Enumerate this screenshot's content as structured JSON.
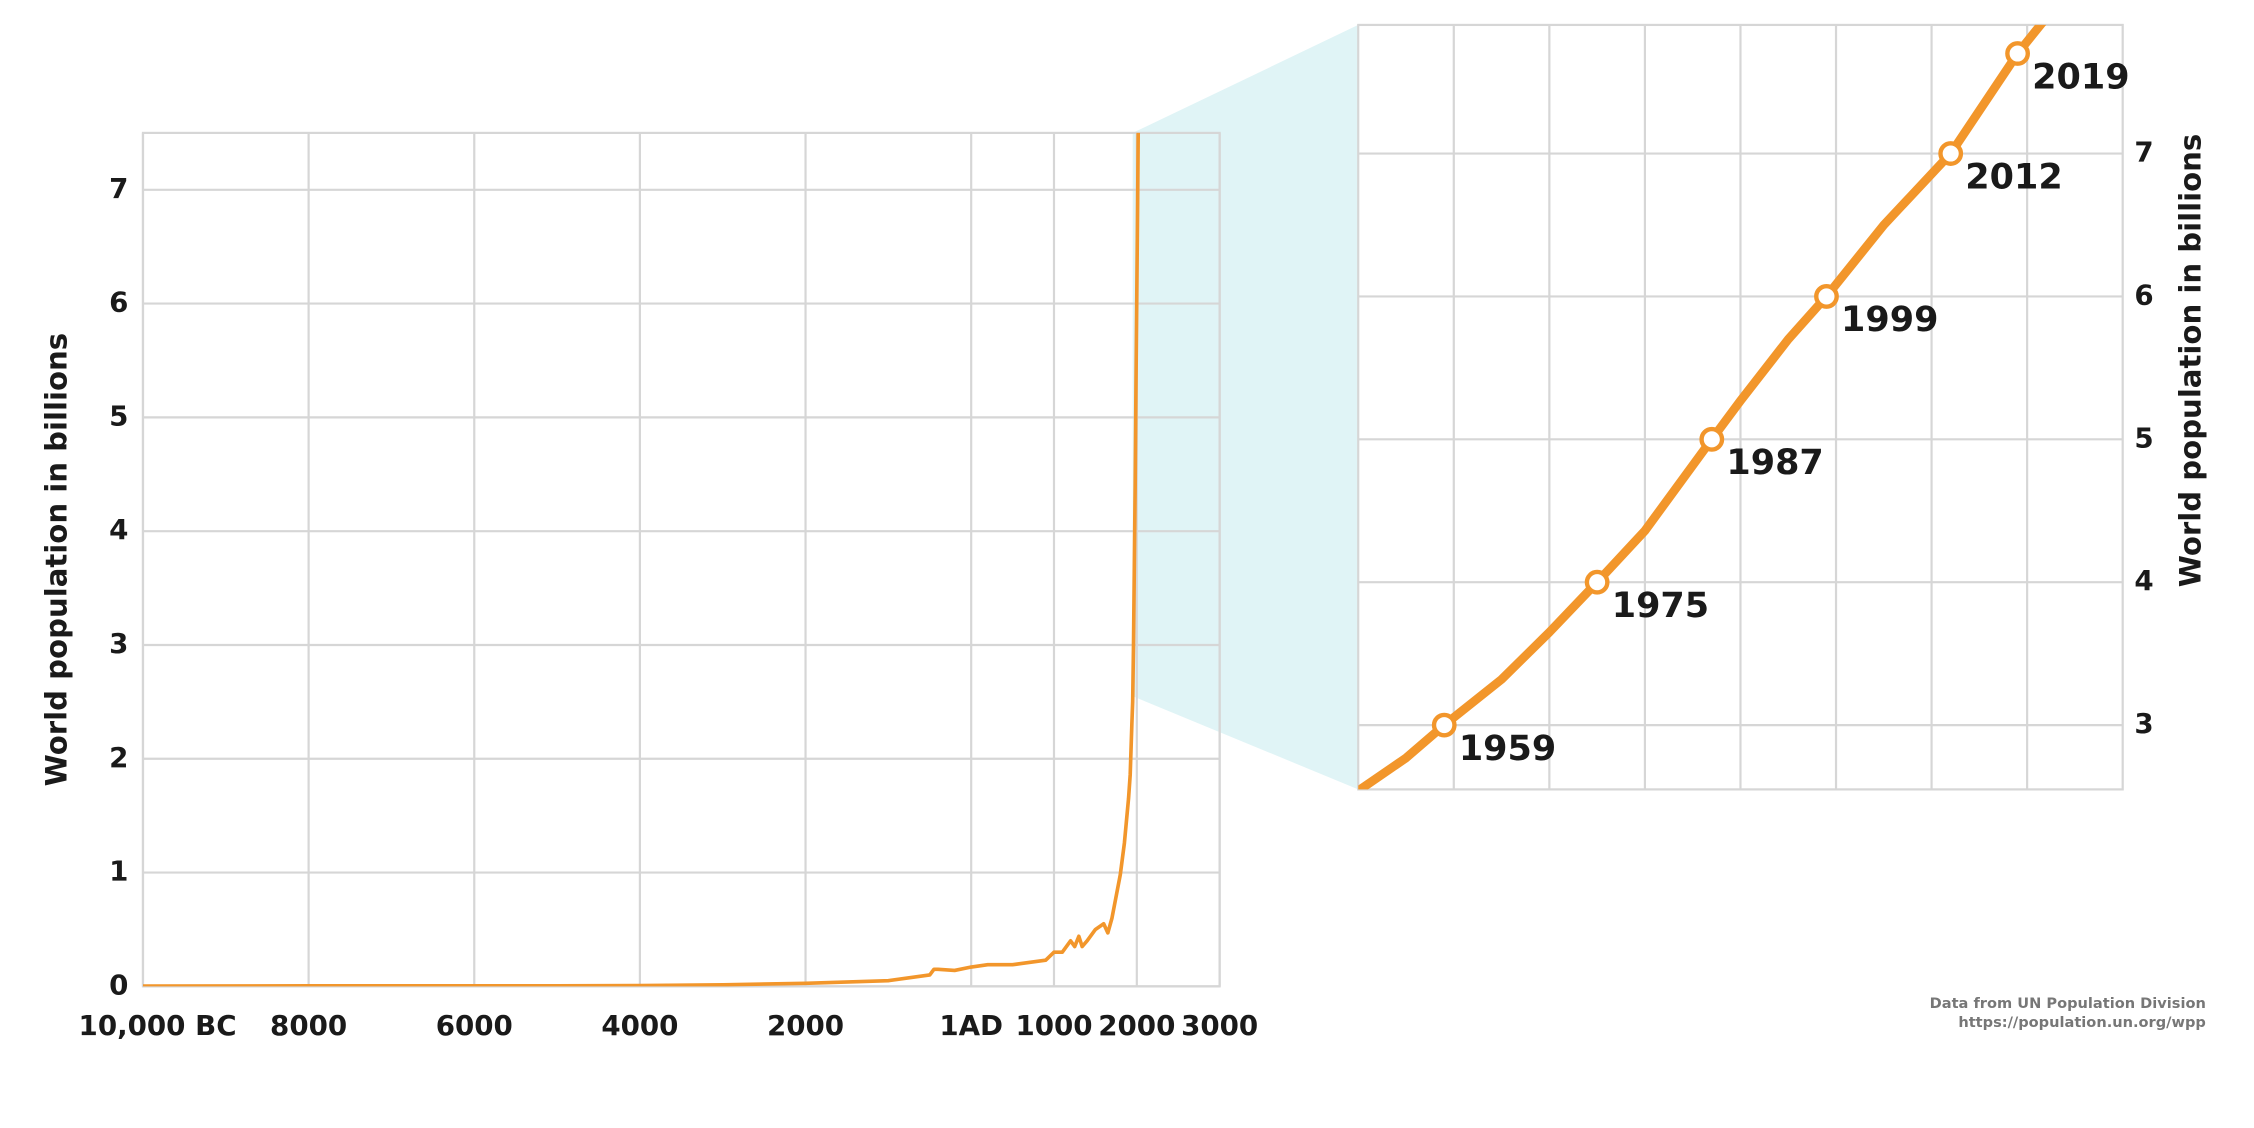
{
  "chart_data": [
    {
      "type": "line",
      "ylabel": "World population in billions",
      "x": [
        -10000,
        -8000,
        -6000,
        -5000,
        -4000,
        -3000,
        -2000,
        -1000,
        -500,
        -450,
        -400,
        -200,
        1,
        200,
        400,
        500,
        600,
        700,
        800,
        900,
        1000,
        1100,
        1200,
        1250,
        1300,
        1340,
        1400,
        1500,
        1600,
        1650,
        1700,
        1750,
        1800,
        1850,
        1900,
        1920,
        1940,
        1950,
        1960,
        1970,
        1980,
        1990,
        2000,
        2010,
        2020
      ],
      "values": [
        0.002,
        0.005,
        0.005,
        0.005,
        0.007,
        0.014,
        0.027,
        0.05,
        0.1,
        0.15,
        0.15,
        0.14,
        0.17,
        0.19,
        0.19,
        0.19,
        0.2,
        0.21,
        0.22,
        0.23,
        0.3,
        0.3,
        0.4,
        0.35,
        0.44,
        0.35,
        0.4,
        0.5,
        0.55,
        0.47,
        0.6,
        0.79,
        0.98,
        1.26,
        1.65,
        1.86,
        2.3,
        2.5,
        3.0,
        3.7,
        4.4,
        5.3,
        6.1,
        6.9,
        7.8
      ],
      "color": "#f2962b",
      "xlim": [
        -10000,
        3000
      ],
      "xticks": [
        {
          "value": -10000,
          "label": "10,000 BC"
        },
        {
          "value": -8000,
          "label": "8000"
        },
        {
          "value": -6000,
          "label": "6000"
        },
        {
          "value": -4000,
          "label": "4000"
        },
        {
          "value": -2000,
          "label": "2000"
        },
        {
          "value": 0,
          "label": "1AD"
        },
        1000,
        2000,
        3000
      ],
      "ylim": [
        0,
        7.5
      ],
      "yticks": [
        0,
        1,
        2,
        3,
        4,
        5,
        6,
        7
      ],
      "grid": true
    },
    {
      "type": "line",
      "ylabel": "World population in billions",
      "x": [
        1950,
        1955,
        1959,
        1965,
        1970,
        1975,
        1980,
        1987,
        1990,
        1995,
        1999,
        2005,
        2012,
        2015,
        2019,
        2022
      ],
      "values": [
        2.54,
        2.77,
        3.0,
        3.32,
        3.65,
        4.0,
        4.36,
        5.0,
        5.27,
        5.7,
        6.0,
        6.5,
        7.0,
        7.3,
        7.7,
        7.95
      ],
      "color": "#f2962b",
      "points": {
        "x": [
          1959,
          1975,
          1987,
          1999,
          2012,
          2019
        ],
        "values": [
          3,
          4,
          5,
          6,
          7,
          7.7
        ]
      },
      "xlim": [
        1950,
        2030
      ],
      "xgrid": [
        1960,
        1970,
        1980,
        1990,
        2000,
        2010,
        2020
      ],
      "ylim": [
        2.55,
        7.9
      ],
      "yticks": [
        3,
        4,
        5,
        6,
        7
      ],
      "grid": true,
      "yaxis_side": "right"
    }
  ],
  "source": [
    "Data from UN Population Division",
    "https://population.un.org/wpp"
  ]
}
